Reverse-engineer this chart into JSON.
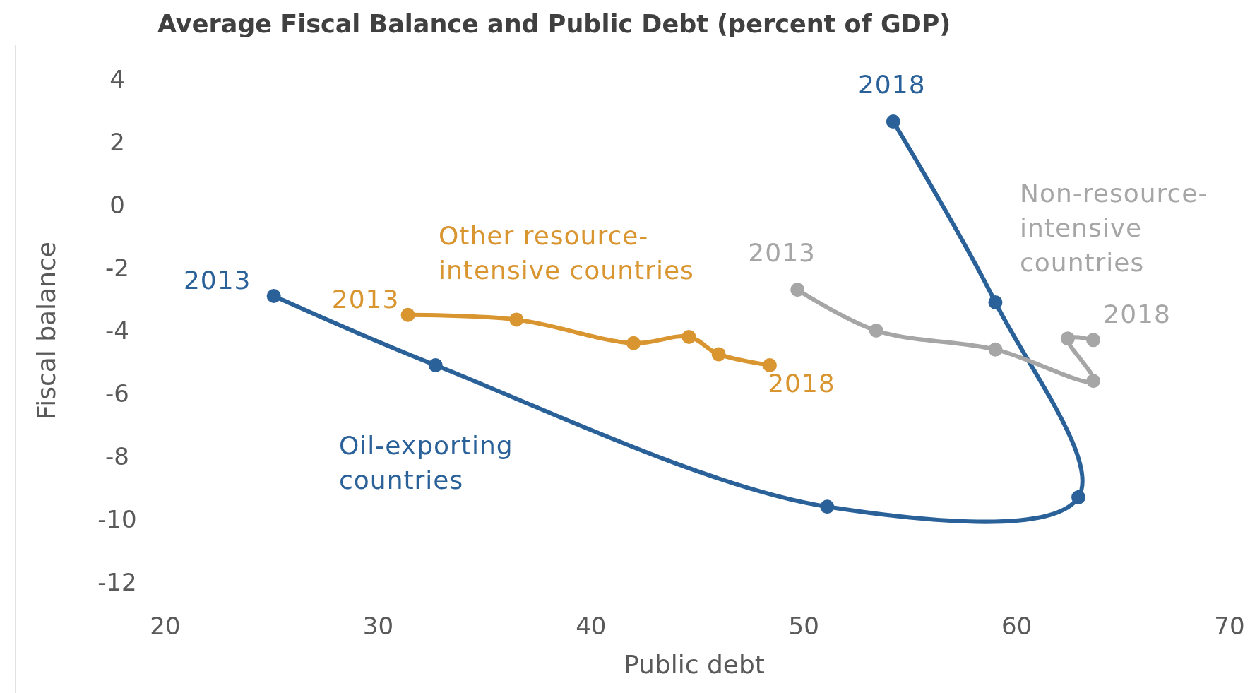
{
  "chart_data": {
    "type": "line",
    "title": "Average Fiscal Balance and Public Debt (percent of GDP)",
    "xlabel": "Public debt",
    "ylabel": "Fiscal balance",
    "xlim": [
      20,
      70
    ],
    "xticks": [
      20,
      30,
      40,
      50,
      60,
      70
    ],
    "ylim": [
      -12,
      4
    ],
    "yticks": [
      -12,
      -10,
      -8,
      -6,
      -4,
      -2,
      0,
      2,
      4
    ],
    "grid": false,
    "marker": "circle",
    "line_style": "solid",
    "series": [
      {
        "name": "Oil-exporting countries",
        "color": "#2a6199",
        "x": [
          25.1,
          32.7,
          51.1,
          62.9,
          59.0,
          54.2
        ],
        "values": [
          -2.9,
          -5.1,
          -9.6,
          -9.3,
          -3.1,
          2.65
        ]
      },
      {
        "name": "Other resource-intensive countries",
        "color": "#d9952f",
        "x": [
          31.4,
          36.5,
          42.0,
          44.6,
          46.0,
          48.4
        ],
        "values": [
          -3.5,
          -3.65,
          -4.4,
          -4.2,
          -4.75,
          -5.1
        ]
      },
      {
        "name": "Non-resource-intensive countries",
        "color": "#a6a6a6",
        "x": [
          49.7,
          53.4,
          59.0,
          63.6,
          62.4,
          63.6
        ],
        "values": [
          -2.7,
          -4.0,
          -4.6,
          -5.6,
          -4.25,
          -4.3
        ]
      }
    ],
    "annotations": [
      {
        "text": "2013",
        "x": 25.1,
        "y": -2.9
      },
      {
        "text": "2018",
        "x": 54.2,
        "y": 2.65
      },
      {
        "text": "2013",
        "x": 31.4,
        "y": -3.5
      },
      {
        "text": "2018",
        "x": 48.4,
        "y": -5.1
      },
      {
        "text": "2013",
        "x": 49.7,
        "y": -2.7
      },
      {
        "text": "2018",
        "x": 63.6,
        "y": -4.3
      }
    ]
  }
}
